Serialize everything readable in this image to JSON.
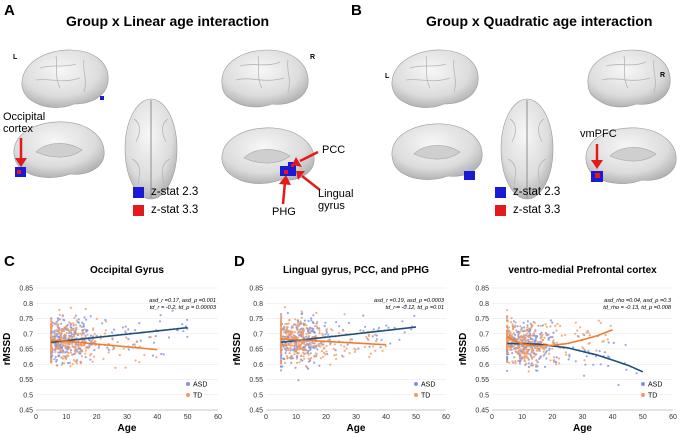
{
  "colors": {
    "zstat_low": "#1a1ad6",
    "zstat_high": "#e31a1c",
    "asd": "#7f93d9",
    "td": "#f29a63",
    "asd_line": "#1f4e79",
    "td_line": "#ed7d31"
  },
  "panel_a": {
    "letter": "A",
    "title": "Group x Linear age interaction",
    "hemi_left": "L",
    "hemi_right": "R",
    "labels": {
      "occipital_1": "Occipital",
      "occipital_2": "cortex",
      "pcc": "PCC",
      "lingual_1": "Lingual",
      "lingual_2": "gyrus",
      "phg": "PHG"
    },
    "legend": [
      "z-stat 2.3",
      "z-stat 3.3"
    ]
  },
  "panel_b": {
    "letter": "B",
    "title": "Group x Quadratic age interaction",
    "hemi_left": "L",
    "hemi_right": "R",
    "labels": {
      "vmpfc": "vmPFC"
    },
    "legend": [
      "z-stat 2.3",
      "z-stat 3.3"
    ]
  },
  "chart_data": [
    {
      "type": "scatter",
      "letter": "C",
      "title": "Occipital Gyrus",
      "xlabel": "Age",
      "ylabel": "rMSSD",
      "xlim": [
        0,
        60
      ],
      "ylim": [
        0.45,
        0.85
      ],
      "xticks": [
        "0",
        "10",
        "20",
        "30",
        "40",
        "50",
        "60"
      ],
      "yticks": [
        "0.45",
        "0.5",
        "0.55",
        "0.6",
        "0.65",
        "0.7",
        "0.75",
        "0.8",
        "0.85"
      ],
      "annotation": [
        "asd_r =0.17, asd_p =0.001",
        "td_r = -0.2, td_p = 0.00003"
      ],
      "legend": [
        "ASD",
        "TD"
      ],
      "fit": {
        "ASD": {
          "x": [
            5,
            50
          ],
          "y": [
            0.672,
            0.72
          ]
        },
        "TD": {
          "x": [
            5,
            40
          ],
          "y": [
            0.68,
            0.648
          ]
        }
      },
      "seed": 11
    },
    {
      "type": "scatter",
      "letter": "D",
      "title": "Lingual gyrus, PCC, and pPHG",
      "xlabel": "Age",
      "ylabel": "rMSSD",
      "xlim": [
        0,
        60
      ],
      "ylim": [
        0.45,
        0.85
      ],
      "xticks": [
        "0",
        "10",
        "20",
        "30",
        "40",
        "50",
        "60"
      ],
      "yticks": [
        "0.45",
        "0.5",
        "0.55",
        "0.6",
        "0.65",
        "0.7",
        "0.75",
        "0.8",
        "0.85"
      ],
      "annotation": [
        "asd_r =0.19, asd_p =0.0003",
        "td_r = -0.12, td_p =0.01"
      ],
      "legend": [
        "ASD",
        "TD"
      ],
      "fit": {
        "ASD": {
          "x": [
            5,
            50
          ],
          "y": [
            0.672,
            0.722
          ]
        },
        "TD": {
          "x": [
            5,
            40
          ],
          "y": [
            0.683,
            0.664
          ]
        }
      },
      "seed": 23
    },
    {
      "type": "scatter",
      "letter": "E",
      "title": "ventro-medial Prefrontal cortex",
      "xlabel": "Age",
      "ylabel": "rMSSD",
      "xlim": [
        0,
        60
      ],
      "ylim": [
        0.45,
        0.85
      ],
      "xticks": [
        "0",
        "10",
        "20",
        "30",
        "40",
        "50",
        "60"
      ],
      "yticks": [
        "0.45",
        "0.5",
        "0.55",
        "0.6",
        "0.65",
        "0.7",
        "0.75",
        "0.8",
        "0.85"
      ],
      "annotation": [
        "asd_rho =0.04, asd_p =0.3",
        "td_rho = -0.13, td_p =0.008"
      ],
      "legend": [
        "ASD",
        "TD"
      ],
      "fit": {
        "ASD": {
          "x": [
            5,
            15,
            25,
            35,
            45,
            50
          ],
          "y": [
            0.668,
            0.666,
            0.654,
            0.63,
            0.597,
            0.575
          ]
        },
        "TD": {
          "x": [
            5,
            10,
            15,
            20,
            25,
            30,
            35,
            40
          ],
          "y": [
            0.69,
            0.666,
            0.66,
            0.662,
            0.668,
            0.68,
            0.694,
            0.713
          ]
        }
      },
      "seed": 37
    }
  ]
}
